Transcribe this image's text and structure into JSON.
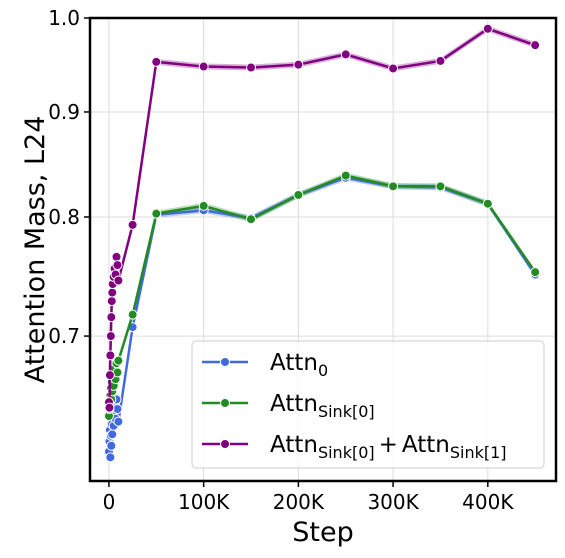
{
  "chart_data": {
    "type": "line",
    "xlabel": "Step",
    "ylabel": "Attention Mass, L24",
    "xlim": [
      -20000,
      472000
    ],
    "ylim": [
      0.595,
      1.0
    ],
    "yscale": "log",
    "grid": true,
    "legend_position": "lower-right",
    "xticks": [
      0,
      100000,
      200000,
      300000,
      400000
    ],
    "xtick_labels": [
      "0",
      "100K",
      "200K",
      "300K",
      "400K"
    ],
    "yticks": [
      0.7,
      0.8,
      0.9,
      1.0
    ],
    "ytick_labels": [
      "0.7",
      "0.8",
      "0.9",
      "1.0"
    ],
    "series": [
      {
        "name": "Attn",
        "name_sub": "0",
        "name_plus": "",
        "name_sub2": "",
        "color": "#4169e1",
        "x": [
          0,
          500,
          1000,
          1500,
          2000,
          2500,
          3000,
          3500,
          4000,
          5000,
          6000,
          7000,
          8000,
          9000,
          10000,
          25000,
          50000,
          100000,
          150000,
          200000,
          250000,
          300000,
          350000,
          400000,
          450000
        ],
        "y": [
          0.615,
          0.622,
          0.63,
          0.611,
          0.626,
          0.619,
          0.634,
          0.627,
          0.64,
          0.633,
          0.646,
          0.638,
          0.652,
          0.645,
          0.636,
          0.707,
          0.802,
          0.806,
          0.799,
          0.82,
          0.836,
          0.828,
          0.827,
          0.812,
          0.75
        ]
      },
      {
        "name": "Attn",
        "name_sub": "Sink[0]",
        "name_plus": "",
        "name_sub2": "",
        "color": "#228b22",
        "x": [
          0,
          500,
          1000,
          1500,
          2000,
          2500,
          3000,
          3500,
          4000,
          5000,
          6000,
          7000,
          8000,
          9000,
          10000,
          25000,
          50000,
          100000,
          150000,
          200000,
          250000,
          300000,
          350000,
          400000,
          450000
        ],
        "y": [
          0.64,
          0.645,
          0.65,
          0.655,
          0.66,
          0.652,
          0.665,
          0.658,
          0.67,
          0.662,
          0.675,
          0.667,
          0.679,
          0.672,
          0.681,
          0.717,
          0.803,
          0.81,
          0.798,
          0.82,
          0.838,
          0.828,
          0.828,
          0.812,
          0.752
        ]
      },
      {
        "name": "Attn",
        "name_sub": "Sink[0]",
        "name_plus": "+",
        "name_sub2": "Sink[1]",
        "color": "#800080",
        "x": [
          0,
          500,
          1000,
          1500,
          2000,
          2500,
          3000,
          3500,
          4000,
          5000,
          6000,
          7000,
          8000,
          9000,
          10000,
          25000,
          50000,
          100000,
          150000,
          200000,
          250000,
          300000,
          350000,
          400000,
          450000
        ],
        "y": [
          0.65,
          0.646,
          0.67,
          0.685,
          0.7,
          0.715,
          0.728,
          0.735,
          0.742,
          0.748,
          0.755,
          0.75,
          0.765,
          0.758,
          0.745,
          0.793,
          0.952,
          0.947,
          0.946,
          0.949,
          0.96,
          0.945,
          0.953,
          0.988,
          0.97
        ]
      }
    ]
  }
}
